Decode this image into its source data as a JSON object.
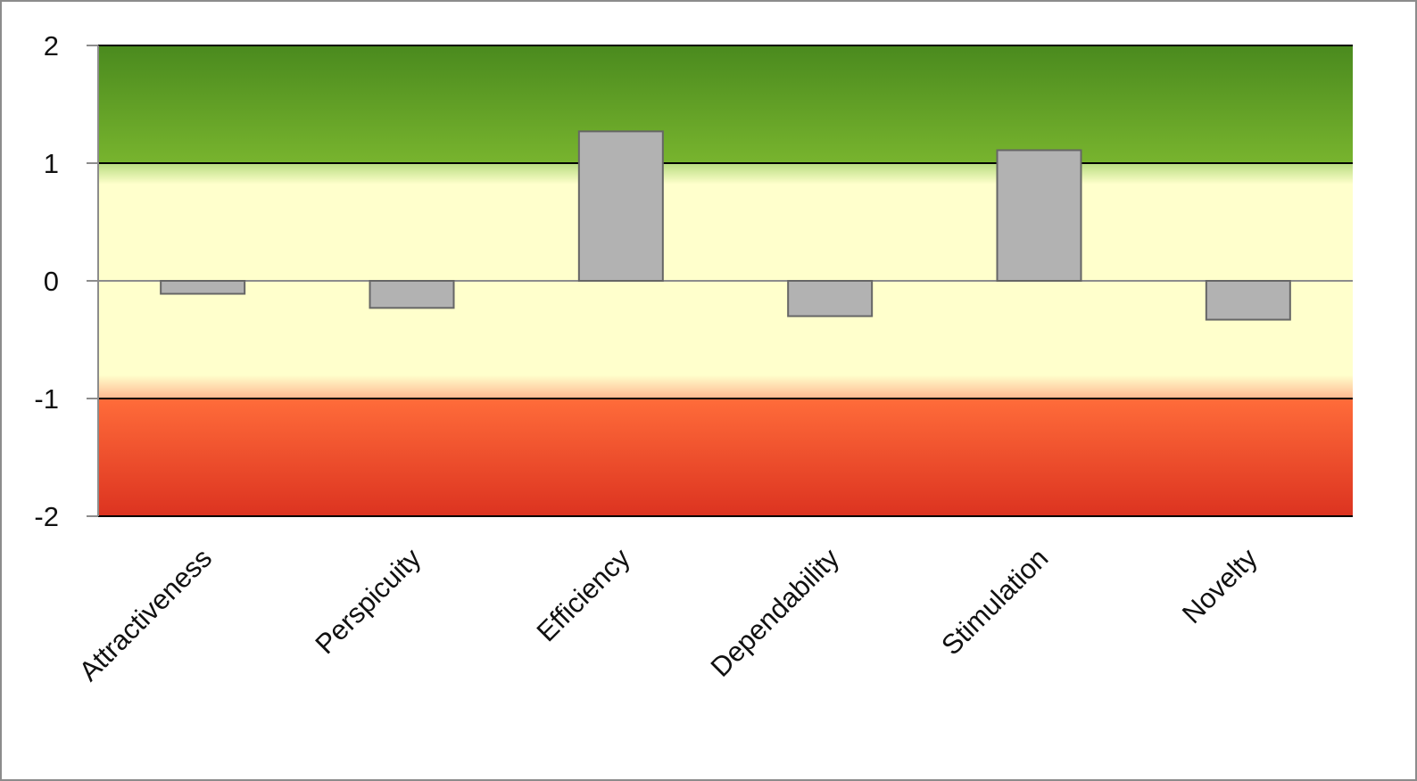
{
  "chart_data": {
    "type": "bar",
    "title": "",
    "xlabel": "",
    "ylabel": "",
    "categories": [
      "Attractiveness",
      "Perspicuity",
      "Efficiency",
      "Dependability",
      "Stimulation",
      "Novelty"
    ],
    "values": [
      -0.11,
      -0.23,
      1.27,
      -0.3,
      1.11,
      -0.33
    ],
    "ylim": [
      -2,
      2
    ],
    "yticks": [
      "2",
      "1",
      "0",
      "-1",
      "-2"
    ],
    "grid": false,
    "legend": "none",
    "bands": [
      {
        "from": 1,
        "to": 2,
        "color_top": "#4a8a1e",
        "color_bottom": "#78b42e"
      },
      {
        "from": -1,
        "to": 1,
        "color": "#ffffcc"
      },
      {
        "from": -2,
        "to": -1,
        "color_top": "#ff6c3a",
        "color_bottom": "#dc3320"
      }
    ],
    "bar_color": "#b2b2b2",
    "bar_edge_color": "#666666"
  }
}
